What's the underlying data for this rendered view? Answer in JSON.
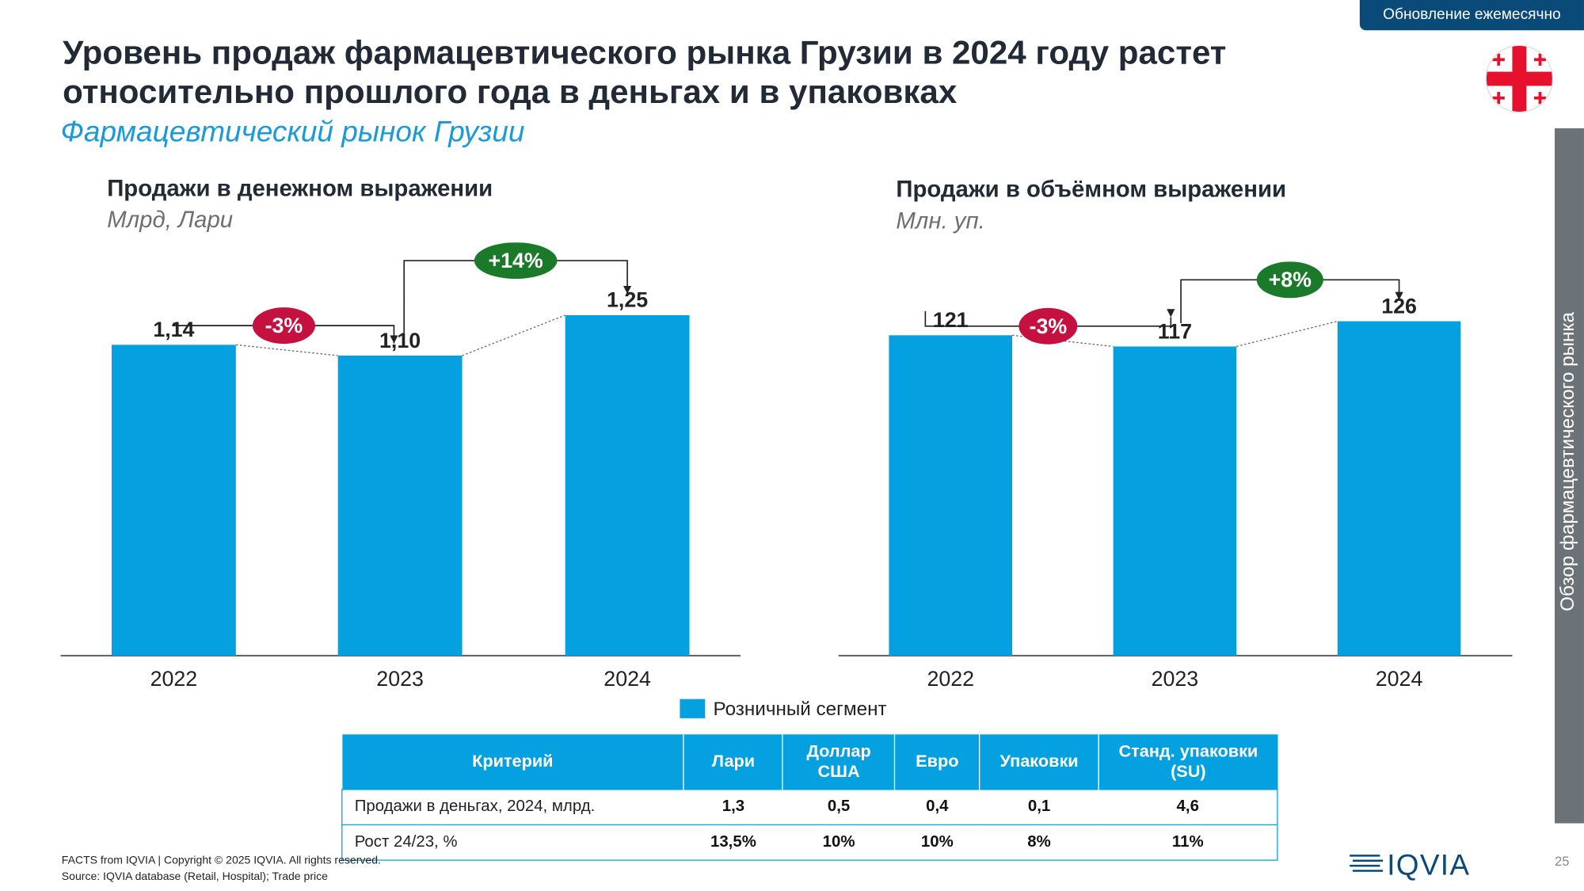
{
  "badge": "Обновление ежемесячно",
  "title_line1": "Уровень продаж фармацевтического рынка Грузии в 2024 году растет",
  "title_line2": "относительно прошлого года в деньгах и в упаковках",
  "subtitle": "Фармацевтический рынок Грузии",
  "sidebar": "Обзор фармацевтического рынка",
  "legend": "Розничный сегмент",
  "colors": {
    "bar": "#04a0e0",
    "badge_neg": "#c5113f",
    "badge_pos": "#1a7a2a",
    "header": "#0a4a78"
  },
  "chart_data": [
    {
      "type": "bar",
      "title": "Продажи в денежном выражении",
      "unit": "Млрд, Лари",
      "categories": [
        "2022",
        "2023",
        "2024"
      ],
      "values": [
        1.14,
        1.1,
        1.25
      ],
      "labels": [
        "1,14",
        "1,10",
        "1,25"
      ],
      "changes": [
        {
          "from": "2022",
          "to": "2023",
          "label": "-3%"
        },
        {
          "from": "2023",
          "to": "2024",
          "label": "+14%"
        }
      ],
      "series": [
        {
          "name": "Розничный сегмент",
          "values": [
            1.14,
            1.1,
            1.25
          ]
        }
      ]
    },
    {
      "type": "bar",
      "title": "Продажи в объёмном выражении",
      "unit": "Млн. уп.",
      "categories": [
        "2022",
        "2023",
        "2024"
      ],
      "values": [
        121,
        117,
        126
      ],
      "labels": [
        "121",
        "117",
        "126"
      ],
      "changes": [
        {
          "from": "2022",
          "to": "2023",
          "label": "-3%"
        },
        {
          "from": "2023",
          "to": "2024",
          "label": "+8%"
        }
      ],
      "series": [
        {
          "name": "Розничный сегмент",
          "values": [
            121,
            117,
            126
          ]
        }
      ]
    }
  ],
  "table": {
    "headers": [
      "Критерий",
      "Лари",
      "Доллар\nСША",
      "Евро",
      "Упаковки",
      "Станд. упаковки\n(SU)"
    ],
    "rows": [
      [
        "Продажи в деньгах,  2024, млрд.",
        "1,3",
        "0,5",
        "0,4",
        "0,1",
        "4,6"
      ],
      [
        "Рост 24/23, %",
        "13,5%",
        "10%",
        "10%",
        "8%",
        "11%"
      ]
    ]
  },
  "footer_line1": "FACTS from IQVIA | Copyright © 2025 IQVIA. All rights reserved.",
  "footer_line2": "Source: IQVIA database (Retail, Hospital); Trade price",
  "logo_text": "IQVIA",
  "page_number": "25"
}
